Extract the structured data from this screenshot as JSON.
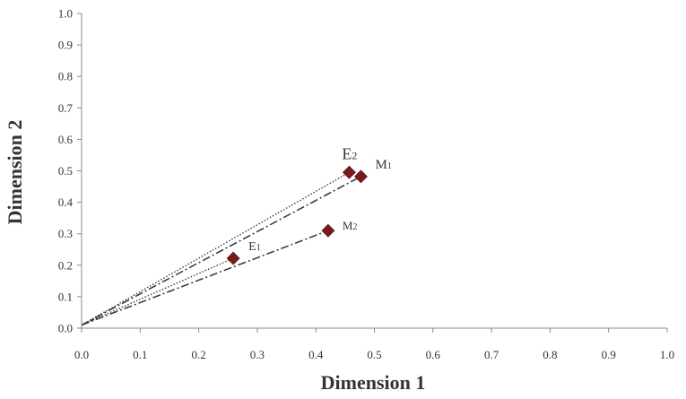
{
  "chart_data": {
    "type": "scatter",
    "title": "",
    "xlabel": "Dimension 1",
    "ylabel": "Dimension 2",
    "xlim": [
      0.0,
      1.0
    ],
    "ylim": [
      0.0,
      1.0
    ],
    "xticks": [
      "0.0",
      "0.1",
      "0.2",
      "0.3",
      "0.4",
      "0.5",
      "0.6",
      "0.7",
      "0.8",
      "0.9",
      "1.0"
    ],
    "yticks": [
      "0.0",
      "0.1",
      "0.2",
      "0.3",
      "0.4",
      "0.5",
      "0.6",
      "0.7",
      "0.8",
      "0.9",
      "1.0"
    ],
    "grid": false,
    "marker_color": "#7a1a1a",
    "points": [
      {
        "label": "E2",
        "x": 0.457,
        "y": 0.495
      },
      {
        "label": "M1",
        "x": 0.477,
        "y": 0.482
      },
      {
        "label": "M2",
        "x": 0.421,
        "y": 0.31
      },
      {
        "label": "E1",
        "x": 0.259,
        "y": 0.222
      }
    ],
    "origin": {
      "x": 0.0,
      "y": 0.01
    },
    "lines": [
      {
        "from": "origin",
        "to": "E2",
        "style": "dotted"
      },
      {
        "from": "origin",
        "to": "M1",
        "style": "dash-dot"
      },
      {
        "from": "origin",
        "to": "E1",
        "style": "dotted"
      },
      {
        "from": "origin",
        "to": "M2",
        "style": "dash-dot"
      }
    ]
  }
}
